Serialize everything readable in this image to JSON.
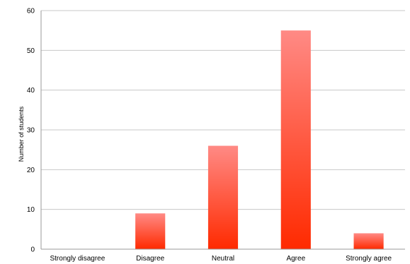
{
  "chart_data": {
    "type": "bar",
    "title": "",
    "xlabel": "",
    "ylabel": "Number of students",
    "categories": [
      "Strongly disagree",
      "Disagree",
      "Neutral",
      "Agree",
      "Strongly agree"
    ],
    "values": [
      0,
      9,
      26,
      55,
      4
    ],
    "ylim": [
      0,
      60
    ],
    "yticks": [
      0,
      10,
      20,
      30,
      40,
      50,
      60
    ],
    "grid": true,
    "legend": "none",
    "bar_color_top": "#ff8a85",
    "bar_color_bottom": "#ff2a00"
  }
}
